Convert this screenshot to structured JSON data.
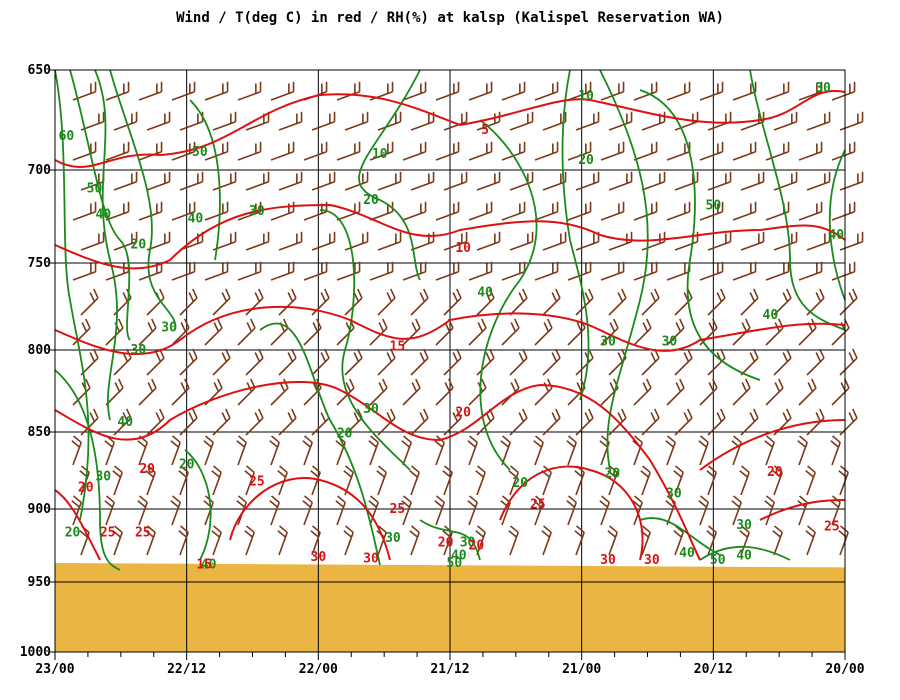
{
  "chart_data": {
    "type": "line",
    "title": "Wind / T(deg C) in red / RH(%) at kalsp (Kalispel Reservation WA)",
    "y_axis": {
      "scale": "pressure (inverted, log-like)",
      "ylim": [
        650,
        1000
      ],
      "ticks": [
        650,
        700,
        750,
        800,
        850,
        900,
        950,
        1000
      ],
      "grid": true
    },
    "x_axis": {
      "ticks": [
        "23/00",
        "22/12",
        "22/00",
        "21/12",
        "21/00",
        "20/12",
        "20/00"
      ],
      "minor_ticks_per_interval": 2,
      "grid": true
    },
    "ground": {
      "pressure_left": 937,
      "pressure_right": 940,
      "color": "#ebb544"
    },
    "temperature_series": {
      "color": "#dd1111",
      "labels": [
        {
          "text": "5",
          "x": 4.9,
          "p": 680
        },
        {
          "text": "10",
          "x": 4.65,
          "p": 742
        },
        {
          "text": "15",
          "x": 3.9,
          "p": 798
        },
        {
          "text": "20",
          "x": 4.65,
          "p": 838
        },
        {
          "text": "20",
          "x": 1.05,
          "p": 874
        },
        {
          "text": "20",
          "x": 0.35,
          "p": 886
        },
        {
          "text": "25",
          "x": 2.3,
          "p": 882
        },
        {
          "text": "25",
          "x": 3.9,
          "p": 900
        },
        {
          "text": "25",
          "x": 1.0,
          "p": 916
        },
        {
          "text": "25",
          "x": 0.6,
          "p": 916
        },
        {
          "text": "25",
          "x": 5.5,
          "p": 897
        },
        {
          "text": "25",
          "x": 8.85,
          "p": 912
        },
        {
          "text": "20",
          "x": 4.45,
          "p": 923
        },
        {
          "text": "20",
          "x": 4.8,
          "p": 925
        },
        {
          "text": "30",
          "x": 3.0,
          "p": 933
        },
        {
          "text": "30",
          "x": 3.6,
          "p": 934
        },
        {
          "text": "30",
          "x": 6.3,
          "p": 935
        },
        {
          "text": "30",
          "x": 6.8,
          "p": 935
        },
        {
          "text": "15",
          "x": 1.7,
          "p": 938
        },
        {
          "text": "20",
          "x": 8.2,
          "p": 876
        }
      ]
    },
    "rh_series": {
      "color": "#1a8a1a",
      "labels": [
        {
          "text": "60",
          "x": 0.13,
          "p": 683
        },
        {
          "text": "50",
          "x": 0.45,
          "p": 710
        },
        {
          "text": "40",
          "x": 0.55,
          "p": 724
        },
        {
          "text": "20",
          "x": 0.95,
          "p": 740
        },
        {
          "text": "40",
          "x": 1.6,
          "p": 726
        },
        {
          "text": "30",
          "x": 2.3,
          "p": 722
        },
        {
          "text": "50",
          "x": 1.65,
          "p": 691
        },
        {
          "text": "10",
          "x": 3.7,
          "p": 692
        },
        {
          "text": "20",
          "x": 3.6,
          "p": 716
        },
        {
          "text": "10",
          "x": 6.05,
          "p": 663
        },
        {
          "text": "20",
          "x": 6.05,
          "p": 695
        },
        {
          "text": "50",
          "x": 7.5,
          "p": 719
        },
        {
          "text": "30",
          "x": 8.75,
          "p": 659
        },
        {
          "text": "40",
          "x": 8.9,
          "p": 735
        },
        {
          "text": "40",
          "x": 8.15,
          "p": 780
        },
        {
          "text": "40",
          "x": 4.9,
          "p": 767
        },
        {
          "text": "30",
          "x": 1.3,
          "p": 787
        },
        {
          "text": "30",
          "x": 0.95,
          "p": 800
        },
        {
          "text": "30",
          "x": 6.3,
          "p": 795
        },
        {
          "text": "30",
          "x": 7.0,
          "p": 795
        },
        {
          "text": "30",
          "x": 3.6,
          "p": 836
        },
        {
          "text": "20",
          "x": 3.3,
          "p": 851
        },
        {
          "text": "40",
          "x": 0.8,
          "p": 844
        },
        {
          "text": "20",
          "x": 1.5,
          "p": 871
        },
        {
          "text": "30",
          "x": 0.55,
          "p": 879
        },
        {
          "text": "20",
          "x": 0.2,
          "p": 916
        },
        {
          "text": "20",
          "x": 5.3,
          "p": 883
        },
        {
          "text": "20",
          "x": 6.35,
          "p": 877
        },
        {
          "text": "30",
          "x": 7.05,
          "p": 890
        },
        {
          "text": "30",
          "x": 7.85,
          "p": 911
        },
        {
          "text": "30",
          "x": 3.85,
          "p": 920
        },
        {
          "text": "30",
          "x": 4.7,
          "p": 923
        },
        {
          "text": "40",
          "x": 4.6,
          "p": 932
        },
        {
          "text": "50",
          "x": 4.55,
          "p": 937
        },
        {
          "text": "40",
          "x": 1.75,
          "p": 938
        },
        {
          "text": "40",
          "x": 7.2,
          "p": 930
        },
        {
          "text": "50",
          "x": 7.55,
          "p": 935
        },
        {
          "text": "40",
          "x": 7.85,
          "p": 932
        }
      ]
    },
    "wind_barbs": {
      "color": "#7a3a1a",
      "note": "barbs at grid points; direction mostly from SW/W"
    }
  }
}
